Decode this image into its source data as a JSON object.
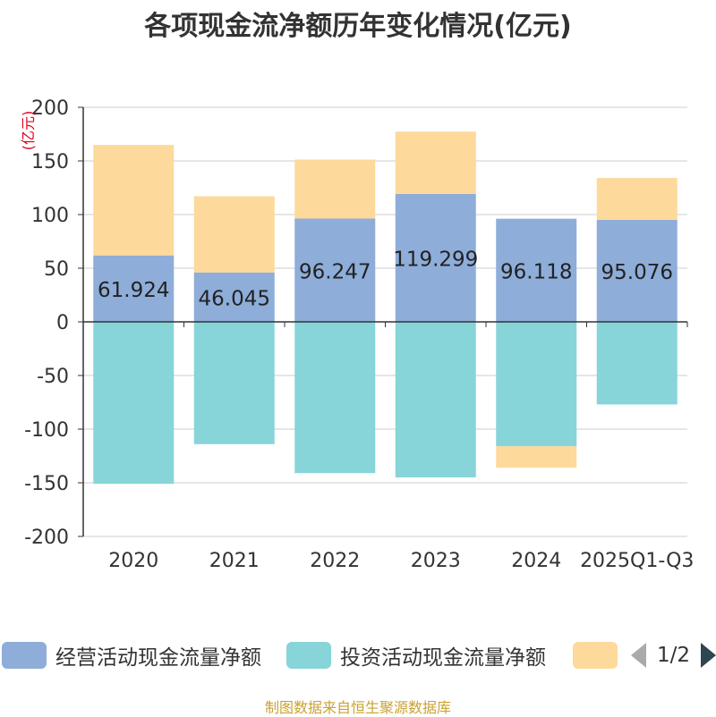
{
  "title": "各项现金流净额历年变化情况(亿元)",
  "source_note": "制图数据来自恒生聚源数据库",
  "legend": {
    "items": [
      {
        "label": "经营活动现金流量净额",
        "color": "#8eadd9"
      },
      {
        "label": "投资活动现金流量净额",
        "color": "#87d5d8"
      },
      {
        "label": "",
        "color": "#fdd99b"
      }
    ],
    "pager_text": "1/2"
  },
  "chart_data": {
    "type": "bar",
    "stacked": true,
    "ylabel": "(亿元)",
    "ylim": [
      -200,
      200
    ],
    "yticks": [
      200,
      150,
      100,
      50,
      0,
      -50,
      -100,
      -150,
      -200
    ],
    "grid": true,
    "legend_position": "bottom",
    "categories": [
      "2020",
      "2021",
      "2022",
      "2023",
      "2024",
      "2025Q1-Q3"
    ],
    "series": [
      {
        "name": "经营活动现金流量净额",
        "color": "#8eadd9",
        "values": [
          61.924,
          46.045,
          96.247,
          119.299,
          96.118,
          95.076
        ],
        "data_labels": [
          "61.924",
          "46.045",
          "96.247",
          "119.299",
          "96.118",
          "95.076"
        ]
      },
      {
        "name": "投资活动现金流量净额",
        "color": "#87d5d8",
        "values": [
          -151,
          -114,
          -141,
          -145,
          -116,
          -77
        ]
      },
      {
        "color": "#fdd99b",
        "values": [
          103,
          71,
          55,
          58,
          -20,
          39
        ]
      }
    ]
  }
}
